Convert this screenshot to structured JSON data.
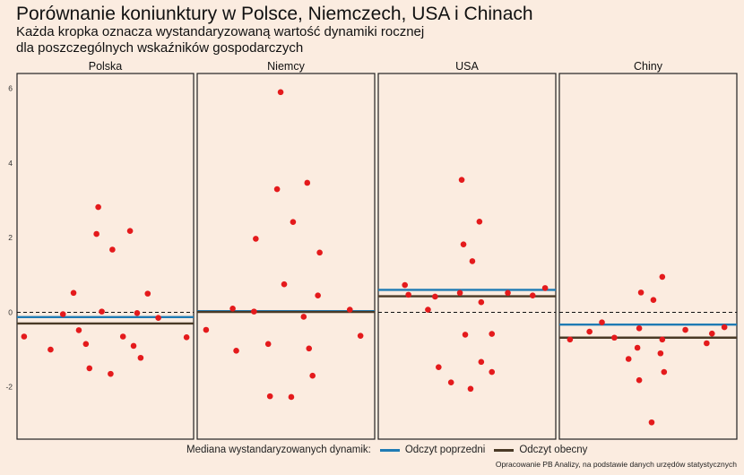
{
  "title": "Porównanie koniunktury w Polsce, Niemczech, USA i Chinach",
  "subtitle_line1": "Każda kropka oznacza wystandaryzowaną wartość dynamiki rocznej",
  "subtitle_line2": "dla poszczególnych wskaźników gospodarczych",
  "legend": {
    "title": "Mediana wystandaryzowanych dynamik:",
    "items": [
      {
        "label": "Odczyt poprzedni",
        "color": "#1f7bb4"
      },
      {
        "label": "Odczyt obecny",
        "color": "#4a3a26"
      }
    ]
  },
  "caption": "Opracowanie PB Analizy, na podstawie danych urzędów statystycznych",
  "chart_data": {
    "type": "scatter",
    "ylim": [
      -3.4,
      6.4
    ],
    "yticks": [
      -2,
      0,
      2,
      4,
      6
    ],
    "reference_line": 0,
    "point_color": "#e41a1c",
    "panels": [
      {
        "name": "Polska",
        "previous_median": -0.13,
        "current_median": -0.3,
        "points": [
          {
            "x": 0.04,
            "y": -0.65
          },
          {
            "x": 0.19,
            "y": -1.0
          },
          {
            "x": 0.26,
            "y": -0.05
          },
          {
            "x": 0.32,
            "y": 0.52
          },
          {
            "x": 0.35,
            "y": -0.48
          },
          {
            "x": 0.39,
            "y": -0.85
          },
          {
            "x": 0.41,
            "y": -1.5
          },
          {
            "x": 0.45,
            "y": 2.1
          },
          {
            "x": 0.46,
            "y": 2.82
          },
          {
            "x": 0.48,
            "y": 0.02
          },
          {
            "x": 0.53,
            "y": -1.65
          },
          {
            "x": 0.54,
            "y": 1.68
          },
          {
            "x": 0.6,
            "y": -0.65
          },
          {
            "x": 0.64,
            "y": 2.18
          },
          {
            "x": 0.66,
            "y": -0.9
          },
          {
            "x": 0.68,
            "y": -0.02
          },
          {
            "x": 0.7,
            "y": -1.22
          },
          {
            "x": 0.74,
            "y": 0.5
          },
          {
            "x": 0.8,
            "y": -0.15
          },
          {
            "x": 0.96,
            "y": -0.67
          }
        ]
      },
      {
        "name": "Niemcy",
        "previous_median": 0.03,
        "current_median": 0.01,
        "points": [
          {
            "x": 0.05,
            "y": -0.47
          },
          {
            "x": 0.2,
            "y": 0.1
          },
          {
            "x": 0.22,
            "y": -1.03
          },
          {
            "x": 0.32,
            "y": 0.02
          },
          {
            "x": 0.33,
            "y": 1.97
          },
          {
            "x": 0.4,
            "y": -0.85
          },
          {
            "x": 0.41,
            "y": -2.25
          },
          {
            "x": 0.45,
            "y": 3.3
          },
          {
            "x": 0.47,
            "y": 5.9
          },
          {
            "x": 0.49,
            "y": 0.75
          },
          {
            "x": 0.53,
            "y": -2.27
          },
          {
            "x": 0.54,
            "y": 2.42
          },
          {
            "x": 0.6,
            "y": -0.12
          },
          {
            "x": 0.62,
            "y": 3.47
          },
          {
            "x": 0.63,
            "y": -0.97
          },
          {
            "x": 0.65,
            "y": -1.7
          },
          {
            "x": 0.68,
            "y": 0.45
          },
          {
            "x": 0.69,
            "y": 1.6
          },
          {
            "x": 0.86,
            "y": 0.07
          },
          {
            "x": 0.92,
            "y": -0.63
          }
        ]
      },
      {
        "name": "USA",
        "previous_median": 0.6,
        "current_median": 0.43,
        "points": [
          {
            "x": 0.15,
            "y": 0.73
          },
          {
            "x": 0.17,
            "y": 0.47
          },
          {
            "x": 0.28,
            "y": 0.07
          },
          {
            "x": 0.32,
            "y": 0.42
          },
          {
            "x": 0.34,
            "y": -1.47
          },
          {
            "x": 0.41,
            "y": -1.88
          },
          {
            "x": 0.46,
            "y": 0.52
          },
          {
            "x": 0.47,
            "y": 3.55
          },
          {
            "x": 0.48,
            "y": 1.82
          },
          {
            "x": 0.49,
            "y": -0.6
          },
          {
            "x": 0.52,
            "y": -2.05
          },
          {
            "x": 0.53,
            "y": 1.37
          },
          {
            "x": 0.57,
            "y": 2.43
          },
          {
            "x": 0.58,
            "y": 0.27
          },
          {
            "x": 0.58,
            "y": -1.33
          },
          {
            "x": 0.64,
            "y": -0.58
          },
          {
            "x": 0.64,
            "y": -1.6
          },
          {
            "x": 0.73,
            "y": 0.52
          },
          {
            "x": 0.87,
            "y": 0.45
          },
          {
            "x": 0.94,
            "y": 0.65
          }
        ]
      },
      {
        "name": "Chiny",
        "previous_median": -0.33,
        "current_median": -0.68,
        "points": [
          {
            "x": 0.06,
            "y": -0.73
          },
          {
            "x": 0.17,
            "y": -0.52
          },
          {
            "x": 0.24,
            "y": -0.27
          },
          {
            "x": 0.31,
            "y": -0.68
          },
          {
            "x": 0.39,
            "y": -1.25
          },
          {
            "x": 0.44,
            "y": -0.95
          },
          {
            "x": 0.45,
            "y": -0.43
          },
          {
            "x": 0.45,
            "y": -1.82
          },
          {
            "x": 0.46,
            "y": 0.53
          },
          {
            "x": 0.52,
            "y": -2.95
          },
          {
            "x": 0.53,
            "y": 0.33
          },
          {
            "x": 0.57,
            "y": -1.1
          },
          {
            "x": 0.58,
            "y": 0.95
          },
          {
            "x": 0.58,
            "y": -0.73
          },
          {
            "x": 0.59,
            "y": -1.6
          },
          {
            "x": 0.71,
            "y": -0.47
          },
          {
            "x": 0.83,
            "y": -0.83
          },
          {
            "x": 0.86,
            "y": -0.57
          },
          {
            "x": 0.93,
            "y": -0.4
          }
        ]
      }
    ]
  }
}
